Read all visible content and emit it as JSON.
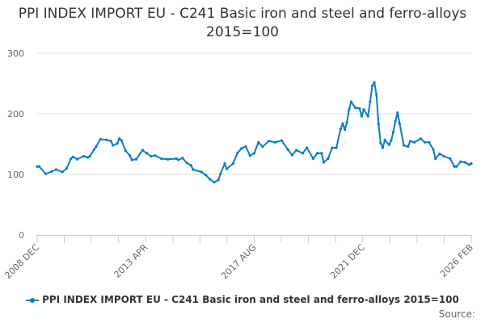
{
  "title": "PPI INDEX IMPORT EU - C241 Basic iron and steel and ferro-alloys 2015=100",
  "source_label": "Source:",
  "colors": {
    "series": "#0a7dc2",
    "grid": "#e0e0e0",
    "axis": "#c0d0e0"
  },
  "chart_data": {
    "type": "line",
    "title": "PPI INDEX IMPORT EU - C241 Basic iron and steel and ferro-alloys 2015=100",
    "xlabel": "",
    "ylabel": "",
    "ylim": [
      0,
      300
    ],
    "yticks": [
      0,
      100,
      200,
      300
    ],
    "xlim": [
      "2008-12",
      "2026-02"
    ],
    "xtick_labels": [
      "2008 DEC",
      "2013 APR",
      "2017 AUG",
      "2021 DEC",
      "2026 FEB"
    ],
    "grid": true,
    "legend": "bottom",
    "series": [
      {
        "name": "PPI INDEX IMPORT EU - C241 Basic iron and steel and ferro-alloys 2015=100",
        "x": [
          "2008-12",
          "2009-01",
          "2009-04",
          "2009-07",
          "2009-09",
          "2009-12",
          "2010-02",
          "2010-04",
          "2010-05",
          "2010-07",
          "2010-10",
          "2010-12",
          "2011-01",
          "2011-03",
          "2011-04",
          "2011-06",
          "2011-09",
          "2011-11",
          "2011-12",
          "2012-02",
          "2012-03",
          "2012-04",
          "2012-06",
          "2012-08",
          "2012-09",
          "2012-11",
          "2013-02",
          "2013-04",
          "2013-06",
          "2013-08",
          "2013-11",
          "2014-02",
          "2014-06",
          "2014-07",
          "2014-09",
          "2014-11",
          "2015-01",
          "2015-02",
          "2015-06",
          "2015-08",
          "2015-10",
          "2015-12",
          "2016-02",
          "2016-03",
          "2016-05",
          "2016-06",
          "2016-09",
          "2016-11",
          "2017-01",
          "2017-03",
          "2017-05",
          "2017-07",
          "2017-09",
          "2017-11",
          "2018-02",
          "2018-05",
          "2018-08",
          "2018-11",
          "2019-01",
          "2019-03",
          "2019-06",
          "2019-08",
          "2019-11",
          "2020-01",
          "2020-03",
          "2020-04",
          "2020-06",
          "2020-08",
          "2020-10",
          "2020-12",
          "2021-01",
          "2021-02",
          "2021-03",
          "2021-04",
          "2021-05",
          "2021-07",
          "2021-09",
          "2021-10",
          "2021-11",
          "2022-01",
          "2022-02",
          "2022-03",
          "2022-04",
          "2022-05",
          "2022-06",
          "2022-07",
          "2022-08",
          "2022-09",
          "2022-11",
          "2022-12",
          "2023-01",
          "2023-02",
          "2023-03",
          "2023-04",
          "2023-06",
          "2023-08",
          "2023-09",
          "2023-11",
          "2024-02",
          "2024-04",
          "2024-06",
          "2024-08",
          "2024-09",
          "2024-11",
          "2025-01",
          "2025-04",
          "2025-06",
          "2025-07",
          "2025-09",
          "2025-11",
          "2026-01",
          "2026-02"
        ],
        "values": [
          113,
          113,
          101,
          105,
          108,
          104,
          110,
          126,
          129,
          125,
          130,
          128,
          130,
          141,
          146,
          158,
          157,
          155,
          148,
          151,
          159,
          156,
          139,
          131,
          124,
          125,
          140,
          135,
          130,
          131,
          126,
          125,
          126,
          124,
          127,
          119,
          115,
          108,
          104,
          99,
          92,
          87,
          91,
          101,
          118,
          109,
          118,
          135,
          143,
          146,
          131,
          135,
          153,
          146,
          155,
          153,
          156,
          141,
          132,
          140,
          135,
          144,
          126,
          135,
          135,
          120,
          126,
          144,
          144,
          175,
          184,
          174,
          186,
          207,
          220,
          210,
          209,
          196,
          207,
          196,
          220,
          246,
          252,
          232,
          183,
          152,
          144,
          157,
          149,
          156,
          170,
          188,
          202,
          184,
          148,
          146,
          155,
          153,
          159,
          153,
          153,
          141,
          126,
          134,
          130,
          126,
          113,
          113,
          121,
          120,
          116,
          118
        ]
      }
    ]
  }
}
